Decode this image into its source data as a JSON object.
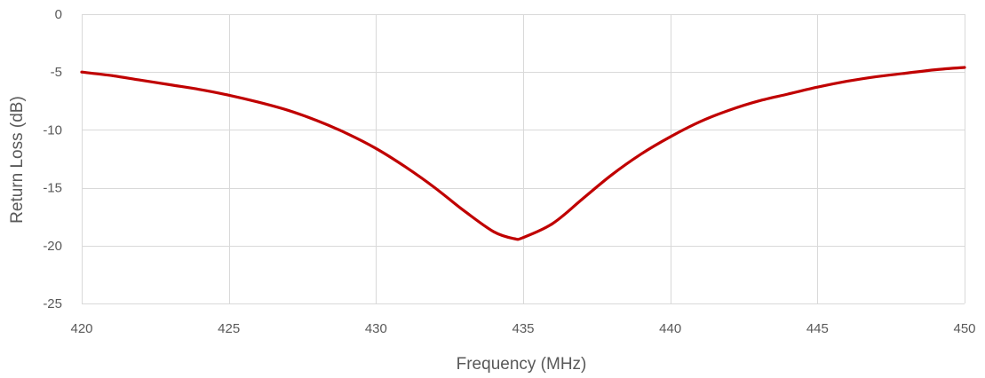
{
  "chart_data": {
    "type": "line",
    "title": "",
    "xlabel": "Frequency (MHz)",
    "ylabel": "Return Loss (dB)",
    "xlim": [
      420,
      450
    ],
    "ylim": [
      -25,
      0
    ],
    "x_ticks": [
      420,
      425,
      430,
      435,
      440,
      445,
      450
    ],
    "y_ticks": [
      0,
      -5,
      -10,
      -15,
      -20,
      -25
    ],
    "grid": true,
    "line_color": "#c00000",
    "grid_color": "#d9d9d9",
    "series": [
      {
        "x": [
          420,
          421,
          422,
          423,
          424,
          425,
          426,
          427,
          428,
          429,
          430,
          431,
          432,
          433,
          434,
          434.7,
          435,
          436,
          437,
          438,
          439,
          440,
          441,
          442,
          443,
          444,
          445,
          446,
          447,
          448,
          449,
          450
        ],
        "values": [
          -5.0,
          -5.3,
          -5.7,
          -6.1,
          -6.5,
          -7.0,
          -7.6,
          -8.3,
          -9.2,
          -10.3,
          -11.6,
          -13.2,
          -15.0,
          -17.0,
          -18.8,
          -19.4,
          -19.3,
          -18.1,
          -16.0,
          -13.9,
          -12.1,
          -10.6,
          -9.3,
          -8.3,
          -7.5,
          -6.9,
          -6.3,
          -5.8,
          -5.4,
          -5.1,
          -4.8,
          -4.6
        ]
      }
    ]
  }
}
